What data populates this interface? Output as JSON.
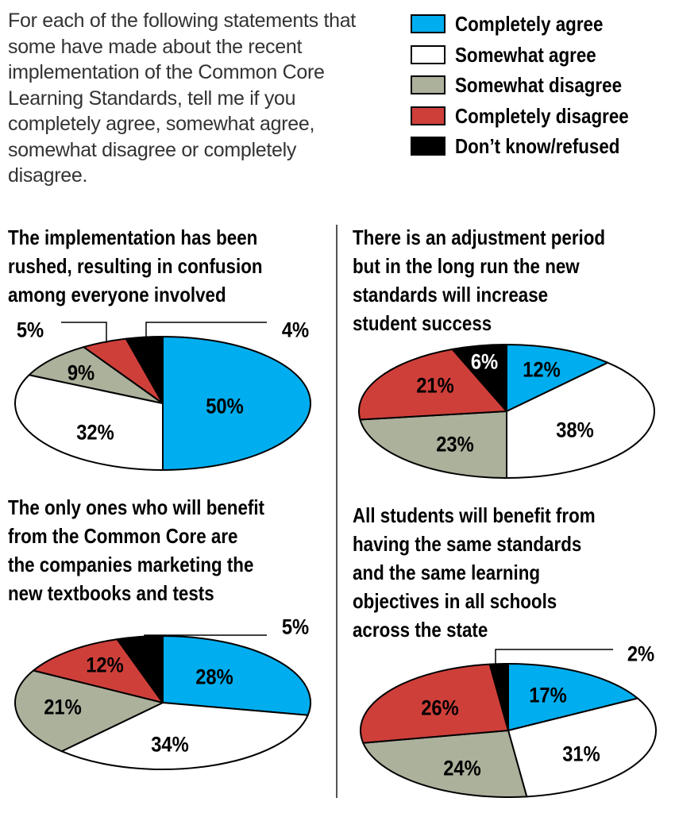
{
  "intro": {
    "lines": [
      "For each of the following statements that",
      "some have made about the recent",
      "implementation of the Common Core",
      "Learning Standards, tell me if you",
      "completely agree, somewhat agree,",
      "somewhat disagree or completely",
      "disagree."
    ]
  },
  "legend": [
    {
      "label": "Completely agree",
      "color": "#00aeef"
    },
    {
      "label": "Somewhat agree",
      "color": "#ffffff"
    },
    {
      "label": "Somewhat disagree",
      "color": "#acb19c"
    },
    {
      "label": "Completely disagree",
      "color": "#cf3f3a"
    },
    {
      "label": "Don’t know/refused",
      "color": "#000000"
    }
  ],
  "chart_data": [
    {
      "type": "pie",
      "title_lines": [
        "The implementation has been",
        "rushed, resulting in confusion",
        "among everyone involved"
      ],
      "categories": [
        "Completely agree",
        "Somewhat agree",
        "Somewhat disagree",
        "Completely disagree",
        "Don’t know/refused"
      ],
      "values": [
        50,
        32,
        9,
        5,
        4
      ],
      "labels": [
        "50%",
        "32%",
        "9%",
        "5%",
        "4%"
      ]
    },
    {
      "type": "pie",
      "title_lines": [
        "There is an adjustment period",
        "but in the long run the new",
        "standards will increase",
        "student success"
      ],
      "categories": [
        "Completely agree",
        "Somewhat agree",
        "Somewhat disagree",
        "Completely disagree",
        "Don’t know/refused"
      ],
      "values": [
        12,
        38,
        23,
        21,
        6
      ],
      "labels": [
        "12%",
        "38%",
        "23%",
        "21%",
        "6%"
      ]
    },
    {
      "type": "pie",
      "title_lines": [
        "The only ones who will benefit",
        "from the Common Core are",
        "the companies marketing the",
        "new textbooks and tests"
      ],
      "categories": [
        "Completely agree",
        "Somewhat agree",
        "Somewhat disagree",
        "Completely disagree",
        "Don’t know/refused"
      ],
      "values": [
        28,
        34,
        21,
        12,
        5
      ],
      "labels": [
        "28%",
        "34%",
        "21%",
        "12%",
        "5%"
      ]
    },
    {
      "type": "pie",
      "title_lines": [
        "All students will benefit from",
        "having the same standards",
        "and the same learning",
        "objectives in all schools",
        "across the state"
      ],
      "categories": [
        "Completely agree",
        "Somewhat agree",
        "Somewhat disagree",
        "Completely disagree",
        "Don’t know/refused"
      ],
      "values": [
        17,
        31,
        24,
        26,
        2
      ],
      "labels": [
        "17%",
        "31%",
        "24%",
        "26%",
        "2%"
      ]
    }
  ]
}
